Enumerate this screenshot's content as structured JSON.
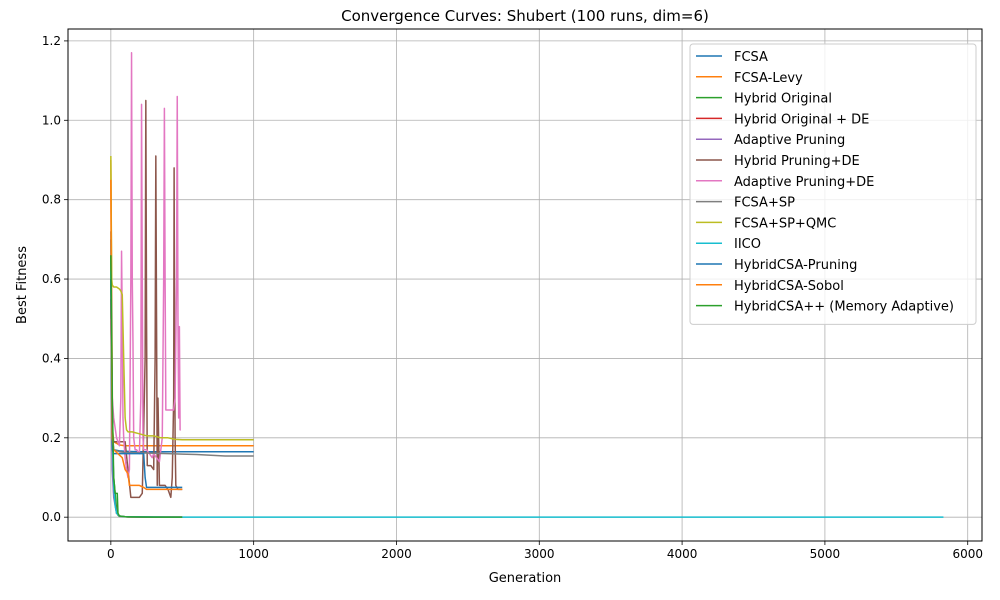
{
  "chart_data": {
    "type": "line",
    "title": "Convergence Curves: Shubert (100 runs, dim=6)",
    "xlabel": "Generation",
    "ylabel": "Best Fitness",
    "xlim": [
      -300,
      6100
    ],
    "ylim": [
      -0.06,
      1.23
    ],
    "xticks": [
      0,
      1000,
      2000,
      3000,
      4000,
      5000,
      6000
    ],
    "yticks": [
      0.0,
      0.2,
      0.4,
      0.6,
      0.8,
      1.0,
      1.2
    ],
    "xtick_labels": [
      "0",
      "1000",
      "2000",
      "3000",
      "4000",
      "5000",
      "6000"
    ],
    "ytick_labels": [
      "0.0",
      "0.2",
      "0.4",
      "0.6",
      "0.8",
      "1.0",
      "1.2"
    ],
    "grid": true,
    "legend_position": "upper right",
    "series": [
      {
        "name": "FCSA",
        "color": "#1f77b4",
        "x": [
          0,
          5,
          12,
          20,
          60,
          100,
          200,
          400,
          700,
          1000
        ],
        "y": [
          0.7,
          0.45,
          0.2,
          0.17,
          0.167,
          0.166,
          0.165,
          0.165,
          0.165,
          0.165
        ]
      },
      {
        "name": "FCSA-Levy",
        "color": "#ff7f0e",
        "x": [
          0,
          5,
          12,
          20,
          60,
          100,
          200,
          400,
          700,
          1000
        ],
        "y": [
          0.9,
          0.6,
          0.22,
          0.19,
          0.182,
          0.18,
          0.18,
          0.18,
          0.18,
          0.18
        ]
      },
      {
        "name": "Hybrid Original",
        "color": "#2ca02c",
        "x": [
          0,
          5,
          10,
          20,
          30,
          40,
          50,
          60,
          100,
          200,
          300,
          400,
          500
        ],
        "y": [
          0.66,
          0.45,
          0.2,
          0.1,
          0.06,
          0.02,
          0.005,
          0.002,
          0.001,
          0.0005,
          0.0003,
          0.0002,
          0.0002
        ]
      },
      {
        "name": "Hybrid Original + DE",
        "color": "#d62728",
        "x": [
          0,
          5,
          10,
          20,
          40,
          60,
          100,
          200,
          300,
          400,
          500
        ],
        "y": [
          0.6,
          0.35,
          0.15,
          0.06,
          0.01,
          0.003,
          0.001,
          0.0005,
          0.0003,
          0.0002,
          0.0002
        ]
      },
      {
        "name": "Adaptive Pruning",
        "color": "#9467bd",
        "x": [
          0,
          5,
          10,
          20,
          40,
          60,
          100,
          200,
          300,
          400,
          500
        ],
        "y": [
          0.55,
          0.3,
          0.12,
          0.05,
          0.01,
          0.002,
          0.001,
          0.0005,
          0.0003,
          0.0002,
          0.0002
        ]
      },
      {
        "name": "Hybrid Pruning+DE",
        "color": "#8c564b",
        "x": [
          0,
          10,
          20,
          40,
          60,
          80,
          100,
          120,
          140,
          160,
          180,
          200,
          220,
          230,
          240,
          245,
          250,
          255,
          260,
          280,
          300,
          310,
          315,
          320,
          325,
          330,
          340,
          360,
          380,
          400,
          420,
          430,
          440,
          443,
          446,
          450,
          455,
          470,
          490,
          500
        ],
        "y": [
          0.55,
          0.2,
          0.19,
          0.19,
          0.19,
          0.19,
          0.19,
          0.12,
          0.05,
          0.05,
          0.05,
          0.05,
          0.06,
          0.22,
          0.4,
          1.05,
          0.5,
          0.13,
          0.13,
          0.13,
          0.12,
          0.4,
          0.91,
          0.5,
          0.08,
          0.3,
          0.08,
          0.08,
          0.08,
          0.07,
          0.05,
          0.1,
          0.3,
          0.88,
          0.5,
          0.2,
          0.08,
          0.07,
          0.07,
          0.07
        ]
      },
      {
        "name": "Adaptive Pruning+DE",
        "color": "#e377c2",
        "x": [
          0,
          10,
          20,
          40,
          60,
          70,
          75,
          80,
          85,
          90,
          100,
          110,
          120,
          130,
          140,
          145,
          150,
          155,
          160,
          170,
          180,
          200,
          210,
          215,
          220,
          225,
          230,
          250,
          270,
          290,
          300,
          320,
          340,
          360,
          370,
          375,
          380,
          385,
          390,
          400,
          420,
          440,
          450,
          460,
          465,
          470,
          475,
          480,
          485,
          490
        ],
        "y": [
          0.5,
          0.3,
          0.25,
          0.2,
          0.18,
          0.3,
          0.67,
          0.5,
          0.25,
          0.2,
          0.15,
          0.12,
          0.1,
          0.12,
          0.6,
          1.17,
          0.6,
          0.44,
          0.2,
          0.17,
          0.17,
          0.16,
          0.3,
          1.04,
          0.6,
          0.2,
          0.17,
          0.17,
          0.16,
          0.15,
          0.16,
          0.15,
          0.14,
          0.2,
          0.6,
          1.03,
          0.6,
          0.27,
          0.27,
          0.27,
          0.27,
          0.27,
          0.3,
          0.6,
          1.06,
          0.5,
          0.25,
          0.48,
          0.22,
          0.22
        ]
      },
      {
        "name": "FCSA+SP",
        "color": "#7f7f7f",
        "x": [
          0,
          5,
          10,
          20,
          60,
          100,
          200,
          300,
          400,
          500,
          600,
          700,
          800,
          900,
          1000
        ],
        "y": [
          0.72,
          0.5,
          0.22,
          0.17,
          0.165,
          0.163,
          0.162,
          0.161,
          0.16,
          0.159,
          0.158,
          0.156,
          0.154,
          0.154,
          0.154
        ]
      },
      {
        "name": "FCSA+SP+QMC",
        "color": "#bcbd22",
        "x": [
          0,
          3,
          6,
          10,
          20,
          40,
          60,
          70,
          80,
          90,
          100,
          110,
          120,
          150,
          200,
          250,
          300,
          350,
          400,
          450,
          500,
          600,
          700,
          800,
          900,
          1000
        ],
        "y": [
          0.91,
          0.75,
          0.6,
          0.585,
          0.58,
          0.58,
          0.575,
          0.57,
          0.56,
          0.4,
          0.25,
          0.22,
          0.215,
          0.215,
          0.21,
          0.205,
          0.205,
          0.2,
          0.2,
          0.196,
          0.195,
          0.195,
          0.195,
          0.195,
          0.195,
          0.195
        ]
      },
      {
        "name": "IICO",
        "color": "#17becf",
        "x": [
          0,
          5,
          10,
          20,
          30,
          40,
          60,
          100,
          500,
          1000,
          2000,
          3000,
          4000,
          5000,
          5830
        ],
        "y": [
          0.62,
          0.4,
          0.2,
          0.08,
          0.03,
          0.01,
          0.003,
          0.001,
          0.0002,
          0.0001,
          0.0001,
          0.0001,
          0.0001,
          0.0001,
          0.0001
        ]
      },
      {
        "name": "HybridCSA-Pruning",
        "color": "#1f77b4",
        "x": [
          0,
          5,
          10,
          20,
          50,
          100,
          150,
          200,
          230,
          240,
          250,
          300,
          350,
          400,
          450,
          500
        ],
        "y": [
          0.6,
          0.3,
          0.17,
          0.16,
          0.16,
          0.16,
          0.16,
          0.16,
          0.16,
          0.1,
          0.075,
          0.075,
          0.075,
          0.075,
          0.075,
          0.075
        ]
      },
      {
        "name": "HybridCSA-Sobol",
        "color": "#ff7f0e",
        "x": [
          0,
          5,
          10,
          20,
          50,
          80,
          100,
          120,
          130,
          150,
          200,
          230,
          250,
          300,
          400,
          500
        ],
        "y": [
          0.85,
          0.4,
          0.2,
          0.17,
          0.16,
          0.15,
          0.12,
          0.11,
          0.08,
          0.08,
          0.08,
          0.075,
          0.07,
          0.07,
          0.07,
          0.07
        ]
      },
      {
        "name": "HybridCSA++ (Memory Adaptive)",
        "color": "#2ca02c",
        "x": [
          0,
          5,
          10,
          20,
          30,
          40,
          45,
          50,
          60,
          100,
          200,
          300,
          400,
          500
        ],
        "y": [
          0.66,
          0.5,
          0.3,
          0.1,
          0.06,
          0.06,
          0.06,
          0.01,
          0.003,
          0.001,
          0.0005,
          0.0003,
          0.0002,
          0.0002
        ]
      }
    ]
  }
}
